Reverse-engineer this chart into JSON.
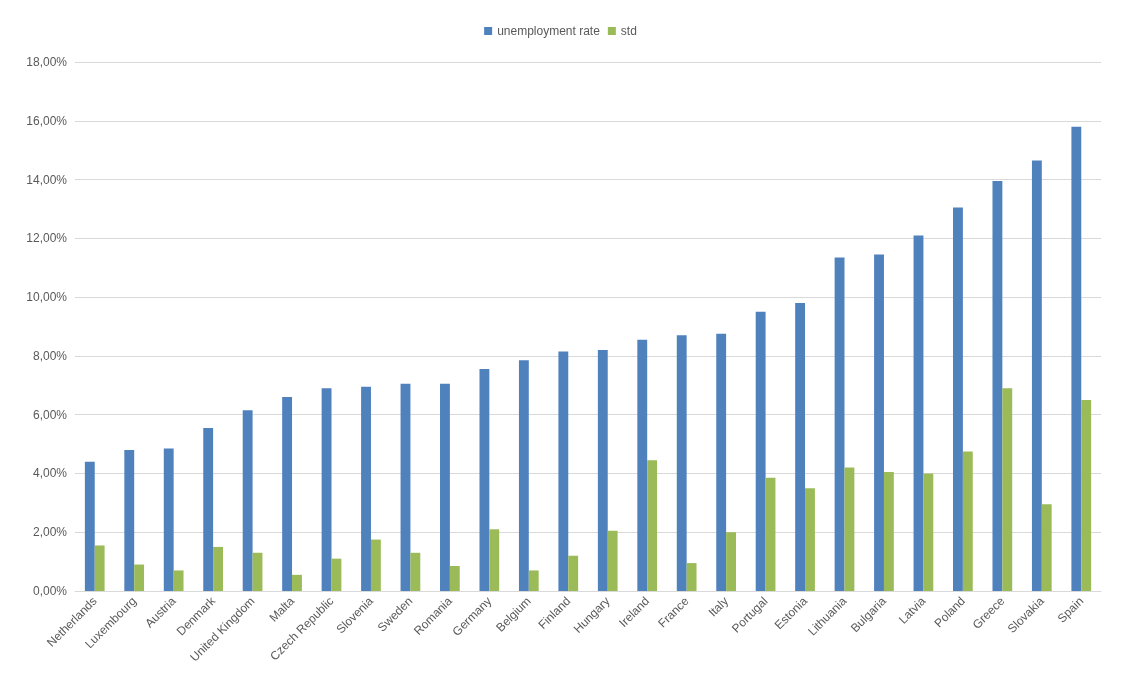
{
  "chart_data": {
    "type": "bar",
    "categories": [
      "Netherlands",
      "Luxembourg",
      "Austria",
      "Denmark",
      "United Kingdom",
      "Malta",
      "Czech Republic",
      "Slovenia",
      "Sweden",
      "Romania",
      "Germany",
      "Belgium",
      "Finland",
      "Hungary",
      "Ireland",
      "France",
      "Italy",
      "Portugal",
      "Estonia",
      "Lithuania",
      "Bulgaria",
      "Latvia",
      "Poland",
      "Greece",
      "Slovakia",
      "Spain"
    ],
    "series": [
      {
        "name": "unemployment rate",
        "color": "#4f81bd",
        "values": [
          4.4,
          4.8,
          4.85,
          5.55,
          6.15,
          6.6,
          6.9,
          6.95,
          7.05,
          7.05,
          7.55,
          7.85,
          8.15,
          8.2,
          8.55,
          8.7,
          8.75,
          9.5,
          9.8,
          11.35,
          11.45,
          12.1,
          13.05,
          13.95,
          14.65,
          15.8
        ]
      },
      {
        "name": "std",
        "color": "#9bbb59",
        "values": [
          1.55,
          0.9,
          0.7,
          1.5,
          1.3,
          0.55,
          1.1,
          1.75,
          1.3,
          0.85,
          2.1,
          0.7,
          1.2,
          2.05,
          4.45,
          0.95,
          2.0,
          3.85,
          3.5,
          4.2,
          4.05,
          4.0,
          4.75,
          6.9,
          2.95,
          6.5
        ]
      }
    ],
    "ylim": [
      0,
      18
    ],
    "yticks": [
      {
        "value": 0,
        "label": "0,00%"
      },
      {
        "value": 2,
        "label": "2,00%"
      },
      {
        "value": 4,
        "label": "4,00%"
      },
      {
        "value": 6,
        "label": "6,00%"
      },
      {
        "value": 8,
        "label": "8,00%"
      },
      {
        "value": 10,
        "label": "10,00%"
      },
      {
        "value": 12,
        "label": "12,00%"
      },
      {
        "value": 14,
        "label": "14,00%"
      },
      {
        "value": 16,
        "label": "16,00%"
      },
      {
        "value": 18,
        "label": "18,00%"
      }
    ],
    "grid": "y",
    "legend": "top"
  }
}
